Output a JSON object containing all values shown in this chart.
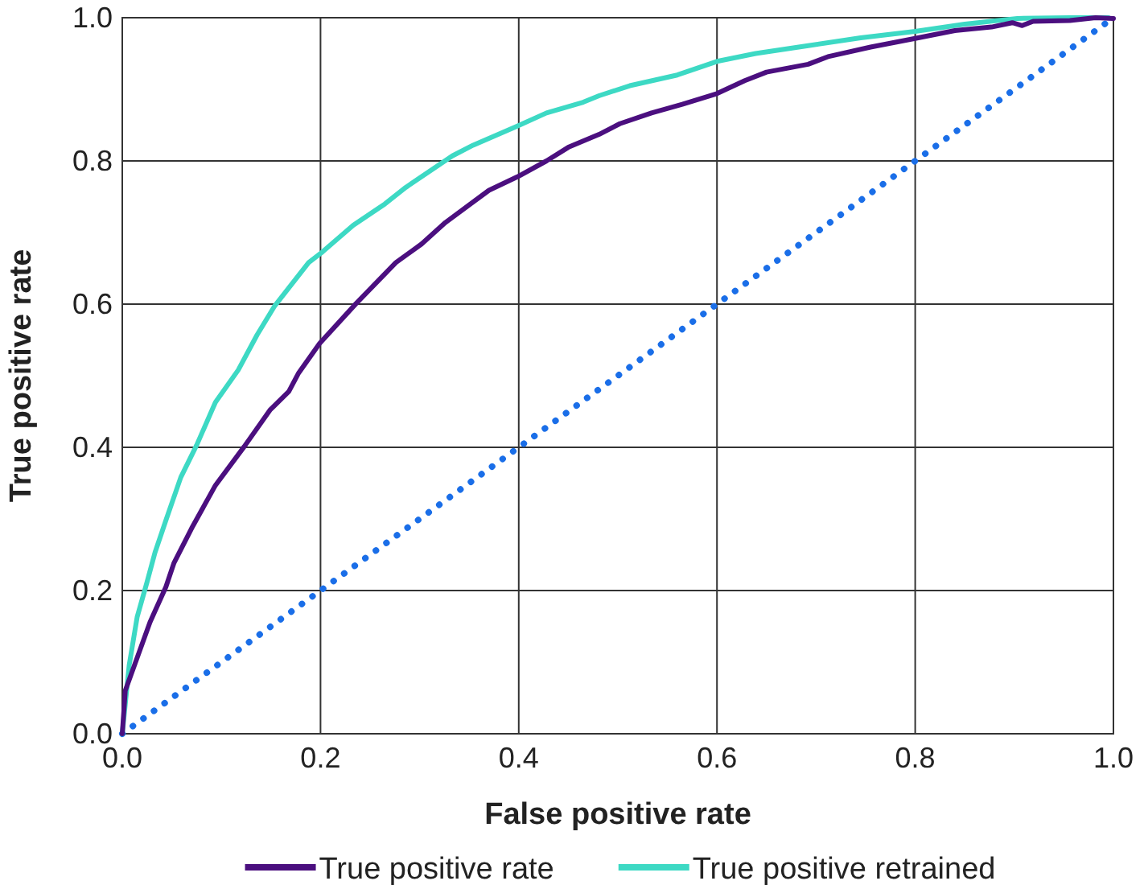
{
  "chart_data": {
    "type": "line",
    "xlabel": "False positive rate",
    "ylabel": "True positive rate",
    "xlim": [
      0,
      1
    ],
    "ylim": [
      0,
      1
    ],
    "xticks": [
      {
        "value": 0,
        "label": "0.0"
      },
      0.2,
      0.4,
      0.6,
      0.8,
      {
        "value": 1,
        "label": "1.0"
      }
    ],
    "yticks": [
      {
        "value": 0,
        "label": "0.0"
      },
      0.2,
      0.4,
      0.6,
      0.8,
      {
        "value": 1,
        "label": "1.0"
      }
    ],
    "grid": true,
    "legend": "bottom",
    "marker": "none",
    "series": [
      {
        "name": "True positive rate",
        "color": "#4b0f7f",
        "line_style": "solid",
        "x": [
          0,
          0.003,
          0.028,
          0.044,
          0.052,
          0.07,
          0.094,
          0.123,
          0.149,
          0.168,
          0.178,
          0.199,
          0.236,
          0.276,
          0.302,
          0.326,
          0.37,
          0.399,
          0.428,
          0.45,
          0.481,
          0.502,
          0.534,
          0.565,
          0.6,
          0.628,
          0.65,
          0.692,
          0.713,
          0.755,
          0.8,
          0.84,
          0.877,
          0.898,
          0.908,
          0.919,
          0.956,
          0.982,
          1.0
        ],
        "values": [
          0,
          0.06,
          0.156,
          0.205,
          0.238,
          0.287,
          0.347,
          0.401,
          0.452,
          0.478,
          0.504,
          0.545,
          0.601,
          0.658,
          0.684,
          0.714,
          0.759,
          0.778,
          0.8,
          0.819,
          0.837,
          0.852,
          0.867,
          0.879,
          0.894,
          0.912,
          0.924,
          0.935,
          0.946,
          0.959,
          0.971,
          0.982,
          0.987,
          0.993,
          0.989,
          0.995,
          0.996,
          1.0,
          0.999
        ]
      },
      {
        "name": "True positive retrained",
        "color": "#3dd9c4",
        "line_style": "solid",
        "x": [
          0,
          0.007,
          0.015,
          0.025,
          0.033,
          0.044,
          0.059,
          0.075,
          0.094,
          0.117,
          0.136,
          0.154,
          0.188,
          0.202,
          0.233,
          0.265,
          0.286,
          0.333,
          0.354,
          0.399,
          0.428,
          0.465,
          0.481,
          0.512,
          0.56,
          0.6,
          0.639,
          0.692,
          0.745,
          0.8,
          0.85,
          0.903,
          0.956,
          0.995
        ],
        "values": [
          0,
          0.096,
          0.163,
          0.212,
          0.253,
          0.298,
          0.358,
          0.403,
          0.463,
          0.508,
          0.557,
          0.598,
          0.658,
          0.673,
          0.71,
          0.74,
          0.763,
          0.807,
          0.822,
          0.849,
          0.867,
          0.882,
          0.891,
          0.905,
          0.92,
          0.939,
          0.95,
          0.961,
          0.972,
          0.981,
          0.991,
          0.999,
          1.0,
          1.0
        ]
      },
      {
        "color": "#1a6ee8",
        "line_style": "dotted",
        "x": [
          0,
          1
        ],
        "values": [
          0,
          1
        ]
      }
    ]
  }
}
